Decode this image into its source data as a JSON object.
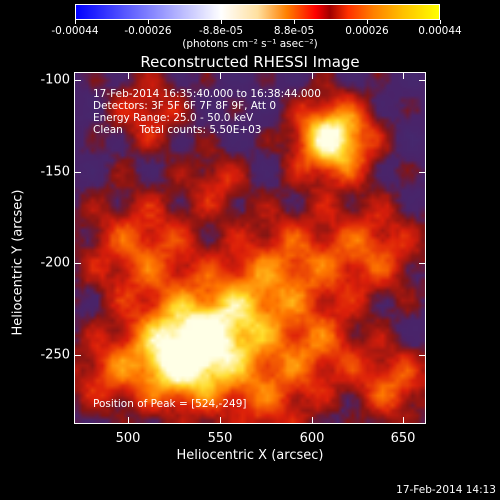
{
  "colorbar": {
    "tick_labels": [
      "-0.00044",
      "-0.00026",
      "-8.8e-05",
      "8.8e-05",
      "0.00026",
      "0.00044"
    ],
    "unit_label": "(photons cm⁻² s⁻¹ asec⁻²)",
    "colors": [
      "#0000ff",
      "#ffffff",
      "#ff0000",
      "#ffff00"
    ]
  },
  "title": "Reconstructed RHESSI Image",
  "info": {
    "line1": "17-Feb-2014 16:35:40.000 to 16:38:44.000",
    "line2": "Detectors: 3F 5F 6F 7F 8F 9F, Att 0",
    "line3": "Energy Range: 25.0 - 50.0 keV",
    "line4": "Clean     Total counts: 5.50E+03",
    "peak": "Position of Peak = [524,-249]"
  },
  "axes": {
    "xlabel": "Heliocentric X (arcsec)",
    "ylabel": "Heliocentric Y (arcsec)",
    "xticks": [
      "500",
      "550",
      "600",
      "650"
    ],
    "yticks": [
      "-100",
      "-150",
      "-200",
      "-250"
    ]
  },
  "footer": "17-Feb-2014 14:13"
}
